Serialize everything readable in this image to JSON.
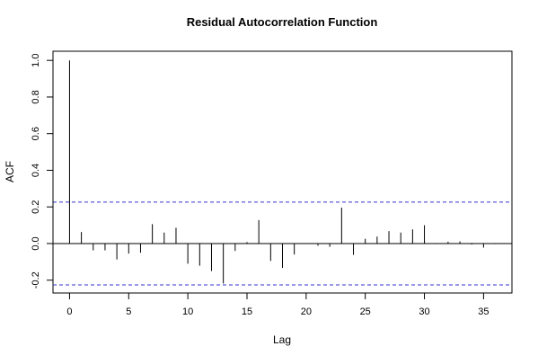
{
  "chart_data": {
    "type": "bar",
    "subtype": "acf",
    "title": "Residual Autocorrelation Function",
    "xlabel": "Lag",
    "ylabel": "ACF",
    "xlim": [
      -1.4,
      37.4
    ],
    "ylim": [
      -0.27,
      1.05
    ],
    "x_ticks": [
      0,
      5,
      10,
      15,
      20,
      25,
      30,
      35
    ],
    "y_ticks": [
      -0.2,
      0.0,
      0.2,
      0.4,
      0.6,
      0.8,
      1.0
    ],
    "confidence_band": {
      "upper": 0.226,
      "lower": -0.226,
      "color": "#3333cc"
    },
    "grid": false,
    "lags": [
      0,
      1,
      2,
      3,
      4,
      5,
      6,
      7,
      8,
      9,
      10,
      11,
      12,
      13,
      14,
      15,
      16,
      17,
      18,
      19,
      20,
      21,
      22,
      23,
      24,
      25,
      26,
      27,
      28,
      29,
      30,
      31,
      32,
      33,
      34,
      35,
      36
    ],
    "values": [
      1.0,
      0.063,
      -0.037,
      -0.037,
      -0.087,
      -0.055,
      -0.05,
      0.106,
      0.06,
      0.086,
      -0.11,
      -0.121,
      -0.15,
      -0.218,
      -0.04,
      0.008,
      0.128,
      -0.095,
      -0.133,
      -0.06,
      0.0,
      -0.012,
      -0.018,
      0.196,
      -0.062,
      0.026,
      0.038,
      0.068,
      0.06,
      0.077,
      0.1,
      -0.003,
      0.01,
      0.012,
      -0.005,
      -0.022,
      -0.003
    ],
    "colors": {
      "bars": "#000000",
      "band": "#3333cc",
      "frame": "#000000"
    }
  }
}
